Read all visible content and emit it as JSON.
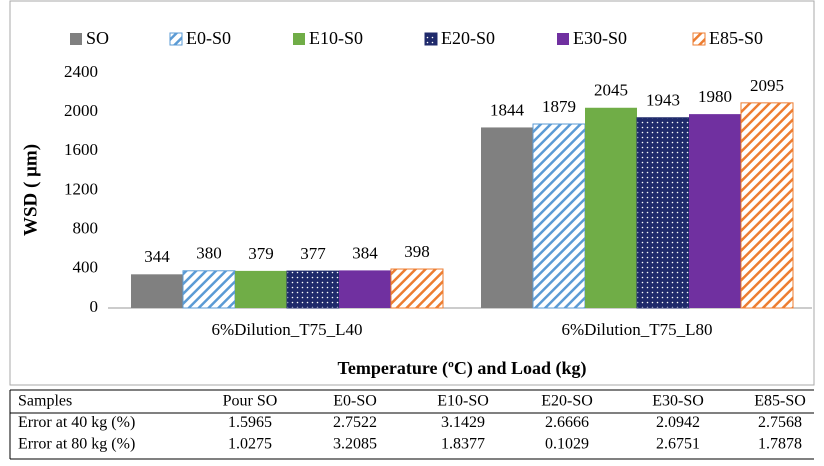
{
  "chart_data": {
    "type": "bar",
    "y_label": "WSD ( μm)",
    "x_label": "Temperature (ºC) and Load (kg)",
    "categories": [
      "6%Dilution_T75_L40",
      "6%Dilution_T75_L80"
    ],
    "series": [
      {
        "name": "SO",
        "color": "#808080",
        "pattern": "solid",
        "values": [
          344,
          1844
        ]
      },
      {
        "name": "E0-S0",
        "color": "#5b9bd5",
        "pattern": "hatch",
        "values": [
          380,
          1879
        ]
      },
      {
        "name": "E10-S0",
        "color": "#70ad47",
        "pattern": "solid",
        "values": [
          379,
          2045
        ]
      },
      {
        "name": "E20-S0",
        "color": "#1f2a6b",
        "pattern": "dots",
        "values": [
          377,
          1943
        ]
      },
      {
        "name": "E30-S0",
        "color": "#7030a0",
        "pattern": "solid",
        "values": [
          384,
          1980
        ]
      },
      {
        "name": "E85-S0",
        "color": "#ed7d31",
        "pattern": "hatch",
        "values": [
          398,
          2095
        ]
      }
    ],
    "ylim": [
      0,
      2400
    ],
    "yticks": [
      0,
      400,
      800,
      1200,
      1600,
      2000,
      2400
    ],
    "grid": false,
    "legend": "top"
  },
  "table": {
    "header": [
      "Samples",
      "Pour SO",
      "E0-SO",
      "E10-SO",
      "E20-SO",
      "E30-SO",
      "E85-SO"
    ],
    "rows": [
      [
        "Error at 40 kg (%)",
        "1.5965",
        "2.7522",
        "3.1429",
        "2.6666",
        "2.0942",
        "2.7568"
      ],
      [
        "Error at 80 kg (%)",
        "1.0275",
        "3.2085",
        "1.8377",
        "0.1029",
        "2.6751",
        "1.7878"
      ]
    ]
  }
}
